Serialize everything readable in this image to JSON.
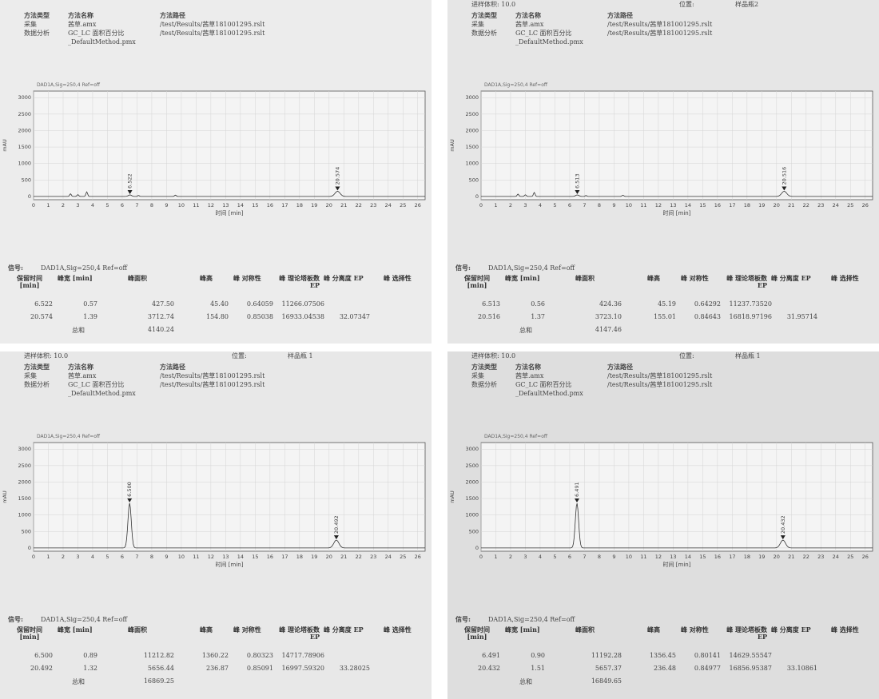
{
  "panels": [
    {
      "top_labels": {
        "injection": "",
        "location": "",
        "sample": ""
      },
      "header": {
        "method_type_label": "方法类型",
        "method_name_label": "方法名称",
        "method_path_label": "方法路径",
        "acq_label": "采集",
        "acq_name": "茜草.amx",
        "acq_path": "/test/Results/茜草181001295.rslt",
        "da_label": "数据分析",
        "da_name": "GC_LC 面积百分比_DefaultMethod.pmx",
        "da_path": "/test/Results/茜草181001295.rslt"
      },
      "signal_caption": "DAD1A,Sig=250,4  Ref=off",
      "y_axis_label": "mAU",
      "x_axis_label": "时间 [min]",
      "y_ticks": [
        "0",
        "500",
        "1000",
        "1500",
        "2000",
        "2500",
        "3000"
      ],
      "x_ticks": [
        "0",
        "1",
        "2",
        "3",
        "4",
        "5",
        "6",
        "7",
        "8",
        "9",
        "10",
        "11",
        "12",
        "13",
        "14",
        "15",
        "16",
        "17",
        "18",
        "19",
        "20",
        "21",
        "22",
        "23",
        "24",
        "25",
        "26"
      ],
      "peaks": [
        {
          "rt": 6.522,
          "label": "6.522",
          "height": 45.4
        },
        {
          "rt": 20.574,
          "label": "20.574",
          "height": 154.8
        }
      ],
      "minor_peaks": [
        {
          "rt": 2.5,
          "h": 80
        },
        {
          "rt": 3.0,
          "h": 55
        },
        {
          "rt": 3.6,
          "h": 140
        },
        {
          "rt": 7.1,
          "h": 30
        },
        {
          "rt": 9.6,
          "h": 40
        }
      ],
      "table": {
        "signal_label": "信号:",
        "signal_value": "DAD1A,Sig=250,4  Ref=off",
        "headers": [
          "保留时间 [min]",
          "峰宽 [min]",
          "峰面积",
          "峰高",
          "峰 对称性",
          "峰 理论塔板数 EP",
          "峰 分离度 EP",
          "峰 选择性"
        ],
        "rows": [
          [
            "6.522",
            "0.57",
            "427.50",
            "45.40",
            "0.64059",
            "11266.07506",
            "",
            ""
          ],
          [
            "20.574",
            "1.39",
            "3712.74",
            "154.80",
            "0.85038",
            "16933.04538",
            "32.07347",
            ""
          ]
        ],
        "total_label": "总和",
        "total_value": "4140.24"
      }
    },
    {
      "top_labels": {
        "injection": "进样体积: 10.0",
        "location": "位置:",
        "sample": "样品瓶2"
      },
      "header": {
        "method_type_label": "方法类型",
        "method_name_label": "方法名称",
        "method_path_label": "方法路径",
        "acq_label": "采集",
        "acq_name": "茜草.amx",
        "acq_path": "/test/Results/茜草181001295.rslt",
        "da_label": "数据分析",
        "da_name": "GC_LC 面积百分比_DefaultMethod.pmx",
        "da_path": "/test/Results/茜草181001295.rslt"
      },
      "signal_caption": "DAD1A,Sig=250,4  Ref=off",
      "y_axis_label": "mAU",
      "x_axis_label": "时间 [min]",
      "y_ticks": [
        "0",
        "500",
        "1000",
        "1500",
        "2000",
        "2500",
        "3000"
      ],
      "x_ticks": [
        "0",
        "1",
        "2",
        "3",
        "4",
        "5",
        "6",
        "7",
        "8",
        "9",
        "10",
        "11",
        "12",
        "13",
        "14",
        "15",
        "16",
        "17",
        "18",
        "19",
        "20",
        "21",
        "22",
        "23",
        "24",
        "25",
        "26"
      ],
      "peaks": [
        {
          "rt": 6.513,
          "label": "6.513",
          "height": 45.19
        },
        {
          "rt": 20.516,
          "label": "20.516",
          "height": 155.01
        }
      ],
      "minor_peaks": [
        {
          "rt": 2.5,
          "h": 70
        },
        {
          "rt": 3.0,
          "h": 50
        },
        {
          "rt": 3.6,
          "h": 120
        },
        {
          "rt": 7.1,
          "h": 28
        },
        {
          "rt": 9.6,
          "h": 38
        }
      ],
      "table": {
        "signal_label": "信号:",
        "signal_value": "DAD1A,Sig=250,4  Ref=off",
        "headers": [
          "保留时间 [min]",
          "峰宽 [min]",
          "峰面积",
          "峰高",
          "峰 对称性",
          "峰 理论塔板数 EP",
          "峰 分离度 EP",
          "峰 选择性"
        ],
        "rows": [
          [
            "6.513",
            "0.56",
            "424.36",
            "45.19",
            "0.64292",
            "11237.73520",
            "",
            ""
          ],
          [
            "20.516",
            "1.37",
            "3723.10",
            "155.01",
            "0.84643",
            "16818.97196",
            "31.95714",
            ""
          ]
        ],
        "total_label": "总和",
        "total_value": "4147.46"
      }
    },
    {
      "top_labels": {
        "injection": "进样体积: 10.0",
        "location": "位置:",
        "sample": "样品瓶 1"
      },
      "header": {
        "method_type_label": "方法类型",
        "method_name_label": "方法名称",
        "method_path_label": "方法路径",
        "acq_label": "采集",
        "acq_name": "茜草.amx",
        "acq_path": "/test/Results/茜草181001295.rslt",
        "da_label": "数据分析",
        "da_name": "GC_LC 面积百分比_DefaultMethod.pmx",
        "da_path": "/test/Results/茜草181001295.rslt"
      },
      "signal_caption": "DAD1A,Sig=250,4  Ref=off",
      "y_axis_label": "mAU",
      "x_axis_label": "时间 [min]",
      "y_ticks": [
        "0",
        "500",
        "1000",
        "1500",
        "2000",
        "2500",
        "3000"
      ],
      "x_ticks": [
        "0",
        "1",
        "2",
        "3",
        "4",
        "5",
        "6",
        "7",
        "8",
        "9",
        "10",
        "11",
        "12",
        "13",
        "14",
        "15",
        "16",
        "17",
        "18",
        "19",
        "20",
        "21",
        "22",
        "23",
        "24",
        "25",
        "26"
      ],
      "peaks": [
        {
          "rt": 6.5,
          "label": "6.500",
          "height": 1360.22
        },
        {
          "rt": 20.492,
          "label": "20.492",
          "height": 236.87
        }
      ],
      "minor_peaks": [],
      "table": {
        "signal_label": "信号:",
        "signal_value": "DAD1A,Sig=250,4  Ref=off",
        "headers": [
          "保留时间 [min]",
          "峰宽 [min]",
          "峰面积",
          "峰高",
          "峰 对称性",
          "峰 理论塔板数 EP",
          "峰 分离度 EP",
          "峰 选择性"
        ],
        "rows": [
          [
            "6.500",
            "0.89",
            "11212.82",
            "1360.22",
            "0.80323",
            "14717.78906",
            "",
            ""
          ],
          [
            "20.492",
            "1.32",
            "5656.44",
            "236.87",
            "0.85091",
            "16997.59320",
            "33.28025",
            ""
          ]
        ],
        "total_label": "总和",
        "total_value": "16869.25"
      }
    },
    {
      "top_labels": {
        "injection": "进样体积: 10.0",
        "location": "位置:",
        "sample": "样品瓶 1"
      },
      "header": {
        "method_type_label": "方法类型",
        "method_name_label": "方法名称",
        "method_path_label": "方法路径",
        "acq_label": "采集",
        "acq_name": "茜草.amx",
        "acq_path": "/test/Results/茜草181001295.rslt",
        "da_label": "数据分析",
        "da_name": "GC_LC 面积百分比_DefaultMethod.pmx",
        "da_path": "/test/Results/茜草181001295.rslt"
      },
      "signal_caption": "DAD1A,Sig=250,4  Ref=off",
      "y_axis_label": "mAU",
      "x_axis_label": "时间 [min]",
      "y_ticks": [
        "0",
        "500",
        "1000",
        "1500",
        "2000",
        "2500",
        "3000"
      ],
      "x_ticks": [
        "0",
        "1",
        "2",
        "3",
        "4",
        "5",
        "6",
        "7",
        "8",
        "9",
        "10",
        "11",
        "12",
        "13",
        "14",
        "15",
        "16",
        "17",
        "18",
        "19",
        "20",
        "21",
        "22",
        "23",
        "24",
        "25",
        "26"
      ],
      "peaks": [
        {
          "rt": 6.491,
          "label": "6.491",
          "height": 1356.45
        },
        {
          "rt": 20.432,
          "label": "20.432",
          "height": 236.48
        }
      ],
      "minor_peaks": [],
      "table": {
        "signal_label": "信号:",
        "signal_value": "DAD1A,Sig=250,4  Ref=off",
        "headers": [
          "保留时间 [min]",
          "峰宽 [min]",
          "峰面积",
          "峰高",
          "峰 对称性",
          "峰 理论塔板数 EP",
          "峰 分离度 EP",
          "峰 选择性"
        ],
        "rows": [
          [
            "6.491",
            "0.90",
            "11192.28",
            "1356.45",
            "0.80141",
            "14629.55547",
            "",
            ""
          ],
          [
            "20.432",
            "1.51",
            "5657.37",
            "236.48",
            "0.84977",
            "16856.95387",
            "33.10861",
            ""
          ]
        ],
        "total_label": "总和",
        "total_value": "16849.65"
      }
    }
  ]
}
